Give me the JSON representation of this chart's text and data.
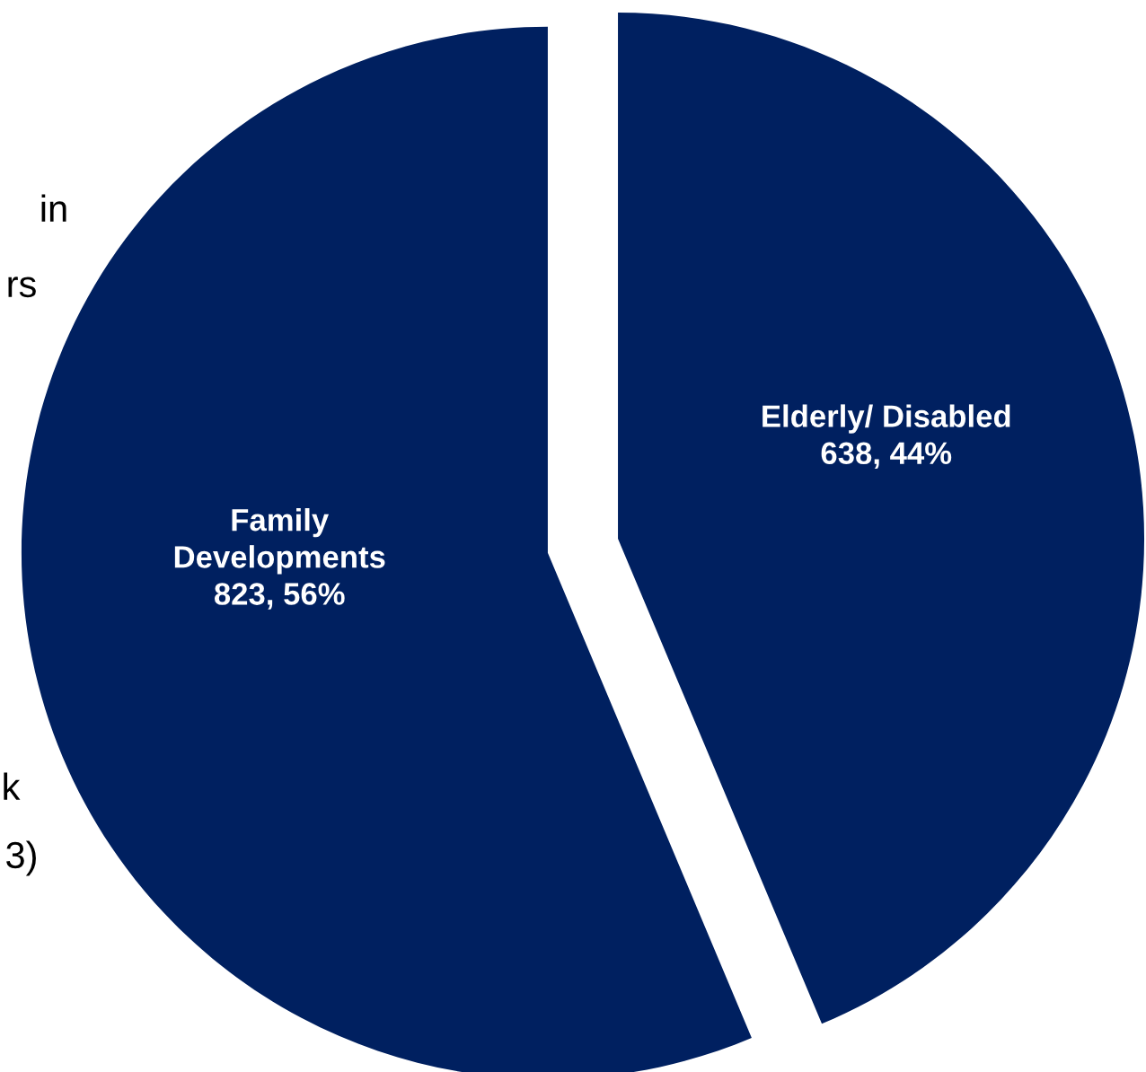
{
  "chart_data": {
    "type": "pie",
    "categories": [
      "Elderly/ Disabled",
      "Family\nDevelopments"
    ],
    "values": [
      638,
      823
    ],
    "value_labels": [
      "638, 44%",
      "823, 56%"
    ],
    "colors": [
      "#002060",
      "#002060"
    ],
    "annotations": [
      "in",
      "rs",
      "k",
      "3)"
    ]
  }
}
